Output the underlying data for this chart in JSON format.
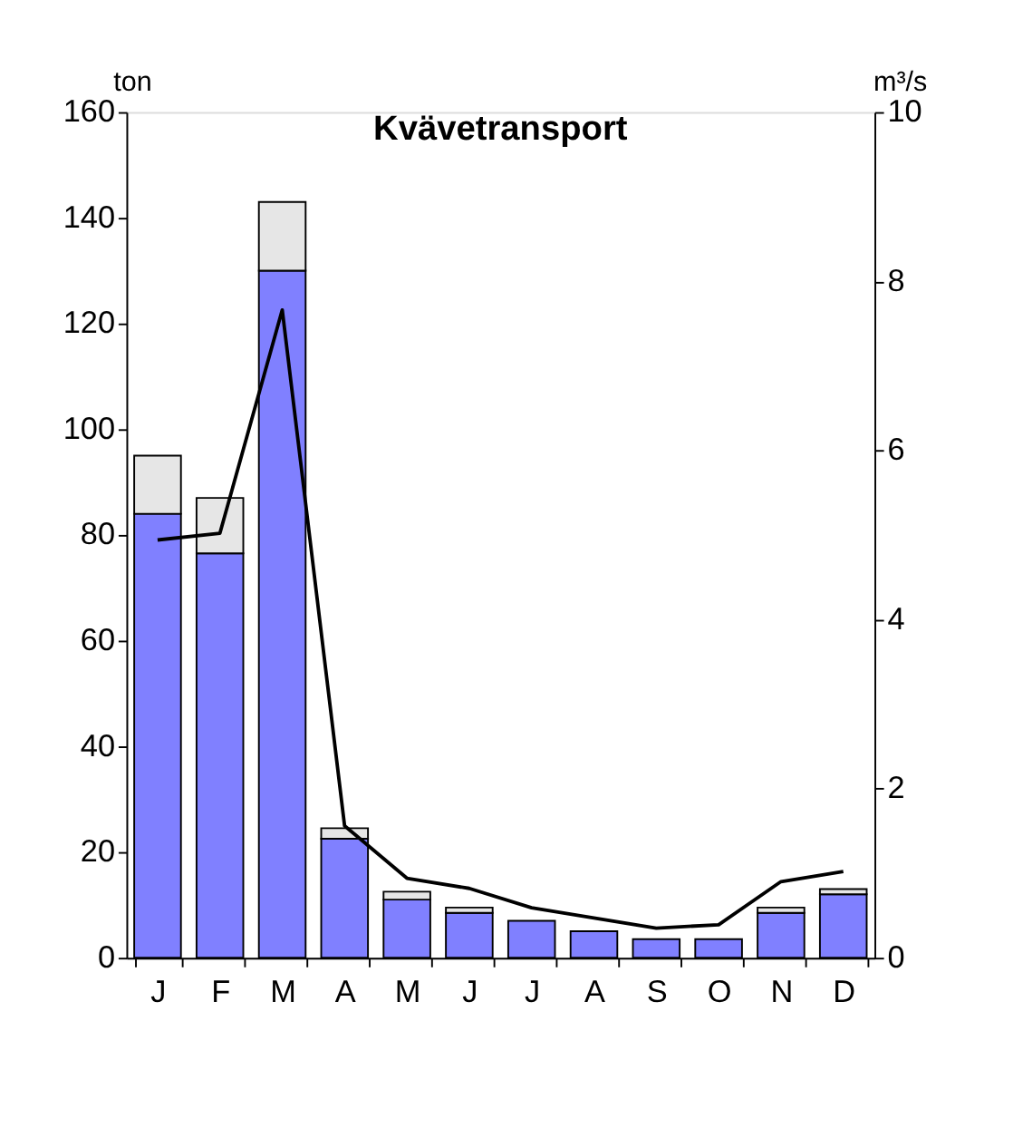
{
  "chart_data": {
    "type": "bar",
    "title": "Kvävetransport",
    "categories": [
      "J",
      "F",
      "M",
      "A",
      "M",
      "J",
      "J",
      "A",
      "S",
      "O",
      "N",
      "D"
    ],
    "stacked": true,
    "ylabel": "ton",
    "y2label": "m³/s",
    "ylim": [
      0,
      160
    ],
    "yticks": [
      0,
      20,
      40,
      60,
      80,
      100,
      120,
      140,
      160
    ],
    "y2lim": [
      0,
      10
    ],
    "y2ticks": [
      0,
      2,
      4,
      6,
      8,
      10
    ],
    "grid": false,
    "legend": false,
    "series": [
      {
        "color": "#8080ff",
        "values": [
          84,
          76.5,
          130,
          22.5,
          11,
          8.5,
          7,
          5,
          3.5,
          3.5,
          8.5,
          12
        ]
      },
      {
        "color": "#e6e6e6",
        "values": [
          11,
          10.5,
          13,
          2,
          1.5,
          1,
          null,
          null,
          null,
          null,
          1,
          1
        ]
      },
      {
        "type": "line",
        "axis": "y2",
        "color": "#000000",
        "values": [
          4.94,
          5.02,
          7.66,
          1.56,
          0.94,
          0.82,
          0.59,
          0.47,
          0.35,
          0.39,
          0.9,
          1.02
        ]
      }
    ]
  }
}
